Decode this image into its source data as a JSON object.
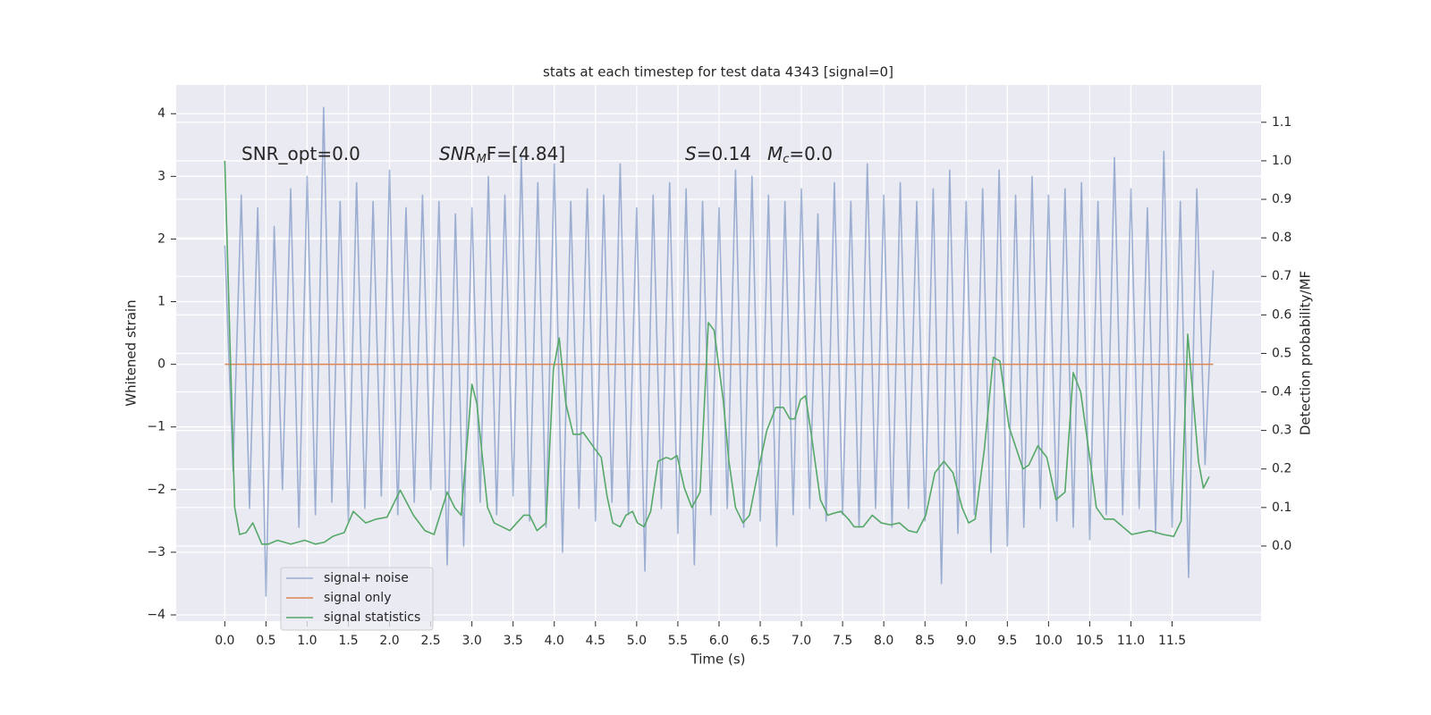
{
  "chart_data": {
    "type": "line",
    "title": "stats at each timestep for test data 4343 [signal=0]",
    "xlabel": "Time (s)",
    "ylabel": "Whitened strain",
    "y2label": "Detection probability/MF",
    "annotations": [
      {
        "parts": [
          {
            "text": "SNR_opt=0.0"
          }
        ]
      },
      {
        "parts": [
          {
            "text": "SNR",
            "style": "italic"
          },
          {
            "text": "M",
            "style": "italic-sub"
          },
          {
            "text": "F=[4.84]"
          }
        ]
      },
      {
        "parts": [
          {
            "text": "S",
            "style": "italic"
          },
          {
            "text": "=0.14"
          }
        ]
      },
      {
        "parts": [
          {
            "text": "M",
            "style": "italic"
          },
          {
            "text": "c",
            "style": "italic-sub"
          },
          {
            "text": "=0.0"
          }
        ]
      }
    ],
    "xlim": [
      -0.59,
      12.58
    ],
    "ylim": [
      -4.1,
      4.46
    ],
    "y2lim": [
      -0.195,
      1.197
    ],
    "xticks": [
      {
        "value": 0,
        "label": "0.0"
      },
      {
        "value": 0.5,
        "label": "0.5"
      },
      {
        "value": 1,
        "label": "1.0"
      },
      {
        "value": 1.5,
        "label": "1.5"
      },
      {
        "value": 2,
        "label": "2.0"
      },
      {
        "value": 2.5,
        "label": "2.5"
      },
      {
        "value": 3,
        "label": "3.0"
      },
      {
        "value": 3.5,
        "label": "3.5"
      },
      {
        "value": 4,
        "label": "4.0"
      },
      {
        "value": 4.5,
        "label": "4.5"
      },
      {
        "value": 5,
        "label": "5.0"
      },
      {
        "value": 5.5,
        "label": "5.5"
      },
      {
        "value": 6,
        "label": "6.0"
      },
      {
        "value": 6.5,
        "label": "6.5"
      },
      {
        "value": 7,
        "label": "7.0"
      },
      {
        "value": 7.5,
        "label": "7.5"
      },
      {
        "value": 8,
        "label": "8.0"
      },
      {
        "value": 8.5,
        "label": "8.5"
      },
      {
        "value": 9,
        "label": "9.0"
      },
      {
        "value": 9.5,
        "label": "9.5"
      },
      {
        "value": 10,
        "label": "10.0"
      },
      {
        "value": 10.5,
        "label": "10.5"
      },
      {
        "value": 11,
        "label": "11.0"
      },
      {
        "value": 11.5,
        "label": "11.5"
      }
    ],
    "yticks": [
      {
        "value": -4,
        "label": "−4"
      },
      {
        "value": -3,
        "label": "−3"
      },
      {
        "value": -2,
        "label": "−2"
      },
      {
        "value": -1,
        "label": "−1"
      },
      0,
      1,
      2,
      3,
      4
    ],
    "y2ticks": [
      {
        "value": 0,
        "label": "0.0"
      },
      0.1,
      0.2,
      0.3,
      0.4,
      0.5,
      0.6,
      0.7,
      0.8,
      0.9,
      {
        "value": 1,
        "label": "1.0"
      },
      1.1
    ],
    "grid": true,
    "legend": "lower left",
    "series": [
      {
        "name": "signal+ noise",
        "color": "#4c72b0",
        "opacity": 0.5,
        "x": [
          0,
          0.1,
          0.2,
          0.3,
          0.4,
          0.5,
          0.6,
          0.7,
          0.8,
          0.9,
          1,
          1.1,
          1.2,
          1.3,
          1.4,
          1.5,
          1.6,
          1.7,
          1.8,
          1.9,
          2,
          2.1,
          2.2,
          2.3,
          2.4,
          2.5,
          2.6,
          2.7,
          2.8,
          2.9,
          3,
          3.1,
          3.2,
          3.3,
          3.4,
          3.5,
          3.6,
          3.7,
          3.8,
          3.9,
          4,
          4.1,
          4.2,
          4.3,
          4.4,
          4.5,
          4.6,
          4.7,
          4.8,
          4.9,
          5,
          5.1,
          5.2,
          5.3,
          5.4,
          5.5,
          5.6,
          5.7,
          5.8,
          5.9,
          6,
          6.1,
          6.2,
          6.3,
          6.4,
          6.5,
          6.6,
          6.7,
          6.8,
          6.9,
          7,
          7.1,
          7.2,
          7.3,
          7.4,
          7.5,
          7.6,
          7.7,
          7.8,
          7.9,
          8,
          8.1,
          8.2,
          8.3,
          8.4,
          8.5,
          8.6,
          8.7,
          8.8,
          8.9,
          9,
          9.1,
          9.2,
          9.3,
          9.4,
          9.5,
          9.6,
          9.7,
          9.8,
          9.9,
          10,
          10.1,
          10.2,
          10.3,
          10.4,
          10.5,
          10.6,
          10.7,
          10.8,
          10.9,
          11,
          11.1,
          11.2,
          11.3,
          11.4,
          11.5,
          11.6,
          11.7,
          11.8,
          11.9,
          12
        ],
        "values": [
          1.9,
          -1.7,
          2.7,
          -2.3,
          2.5,
          -3.7,
          2.2,
          -2.0,
          2.8,
          -2.6,
          3.0,
          -2.4,
          4.1,
          -2.2,
          2.6,
          -2.5,
          2.9,
          -2.3,
          2.6,
          -2.1,
          3.1,
          -2.4,
          2.5,
          -2.2,
          2.7,
          -2.0,
          2.6,
          -3.2,
          2.4,
          -2.9,
          2.5,
          -2.2,
          3.0,
          -2.4,
          2.7,
          -2.1,
          3.3,
          -2.5,
          2.9,
          -2.6,
          3.2,
          -3.0,
          2.6,
          -2.3,
          2.8,
          -2.5,
          2.7,
          -2.2,
          3.2,
          -2.4,
          2.5,
          -3.3,
          2.7,
          -2.3,
          2.9,
          -2.7,
          2.8,
          -3.2,
          2.6,
          -2.4,
          2.5,
          -2.3,
          3.1,
          -2.6,
          3.0,
          -2.5,
          2.7,
          -2.9,
          2.6,
          -2.4,
          2.8,
          -2.3,
          2.4,
          -2.5,
          2.9,
          -2.4,
          2.6,
          -2.6,
          3.2,
          -2.3,
          2.7,
          -2.6,
          2.9,
          -2.3,
          2.6,
          -2.5,
          2.8,
          -3.5,
          3.1,
          -2.7,
          2.6,
          -2.4,
          2.8,
          -3.0,
          3.1,
          -2.9,
          2.7,
          -2.6,
          3.0,
          -2.3,
          2.7,
          -2.5,
          2.8,
          -2.6,
          2.9,
          -2.8,
          2.6,
          -2.4,
          3.3,
          -2.4,
          2.8,
          -2.3,
          2.5,
          -2.7,
          3.4,
          -2.6,
          2.6,
          -3.4,
          2.8,
          -1.6,
          1.5
        ]
      },
      {
        "name": "signal only",
        "color": "#dd8452",
        "x": [
          0,
          12
        ],
        "values": [
          0,
          0
        ]
      },
      {
        "name": "signal statistics",
        "color": "#55a868",
        "axis": "y2",
        "x": [
          0,
          0.12,
          0.18,
          0.26,
          0.34,
          0.45,
          0.53,
          0.64,
          0.8,
          0.97,
          1.1,
          1.21,
          1.31,
          1.45,
          1.56,
          1.71,
          1.84,
          1.97,
          2.13,
          2.29,
          2.43,
          2.54,
          2.7,
          2.79,
          2.87,
          3.0,
          3.06,
          3.19,
          3.27,
          3.46,
          3.63,
          3.7,
          3.79,
          3.9,
          3.99,
          4.06,
          4.14,
          4.23,
          4.31,
          4.35,
          4.5,
          4.57,
          4.64,
          4.71,
          4.8,
          4.87,
          4.95,
          5.01,
          5.09,
          5.17,
          5.26,
          5.36,
          5.42,
          5.49,
          5.58,
          5.67,
          5.77,
          5.87,
          5.94,
          6.05,
          6.12,
          6.2,
          6.29,
          6.37,
          6.48,
          6.58,
          6.69,
          6.78,
          6.86,
          6.92,
          6.99,
          7.05,
          7.12,
          7.23,
          7.32,
          7.39,
          7.48,
          7.57,
          7.64,
          7.75,
          7.86,
          7.97,
          8.08,
          8.19,
          8.3,
          8.4,
          8.51,
          8.62,
          8.73,
          8.84,
          8.95,
          9.03,
          9.11,
          9.22,
          9.33,
          9.41,
          9.52,
          9.69,
          9.76,
          9.87,
          9.98,
          10.09,
          10.2,
          10.3,
          10.39,
          10.5,
          10.58,
          10.68,
          10.79,
          10.9,
          11.01,
          11.23,
          11.39,
          11.52,
          11.61,
          11.69,
          11.82,
          11.88,
          11.95
        ],
        "values": [
          1.0,
          0.1,
          0.03,
          0.035,
          0.06,
          0.005,
          0.005,
          0.015,
          0.005,
          0.015,
          0.005,
          0.01,
          0.025,
          0.035,
          0.09,
          0.06,
          0.07,
          0.075,
          0.145,
          0.08,
          0.04,
          0.03,
          0.14,
          0.1,
          0.08,
          0.42,
          0.37,
          0.1,
          0.06,
          0.04,
          0.08,
          0.08,
          0.04,
          0.06,
          0.46,
          0.54,
          0.37,
          0.29,
          0.29,
          0.295,
          0.25,
          0.23,
          0.13,
          0.06,
          0.05,
          0.08,
          0.09,
          0.06,
          0.05,
          0.09,
          0.22,
          0.23,
          0.225,
          0.235,
          0.15,
          0.1,
          0.14,
          0.58,
          0.56,
          0.38,
          0.22,
          0.1,
          0.06,
          0.08,
          0.2,
          0.3,
          0.36,
          0.36,
          0.33,
          0.33,
          0.38,
          0.39,
          0.29,
          0.12,
          0.08,
          0.085,
          0.09,
          0.07,
          0.05,
          0.05,
          0.08,
          0.06,
          0.055,
          0.06,
          0.04,
          0.035,
          0.08,
          0.19,
          0.22,
          0.19,
          0.1,
          0.06,
          0.07,
          0.25,
          0.49,
          0.48,
          0.31,
          0.2,
          0.21,
          0.26,
          0.23,
          0.12,
          0.14,
          0.45,
          0.4,
          0.23,
          0.1,
          0.07,
          0.07,
          0.05,
          0.03,
          0.04,
          0.03,
          0.025,
          0.065,
          0.55,
          0.22,
          0.15,
          0.18
        ]
      }
    ]
  }
}
